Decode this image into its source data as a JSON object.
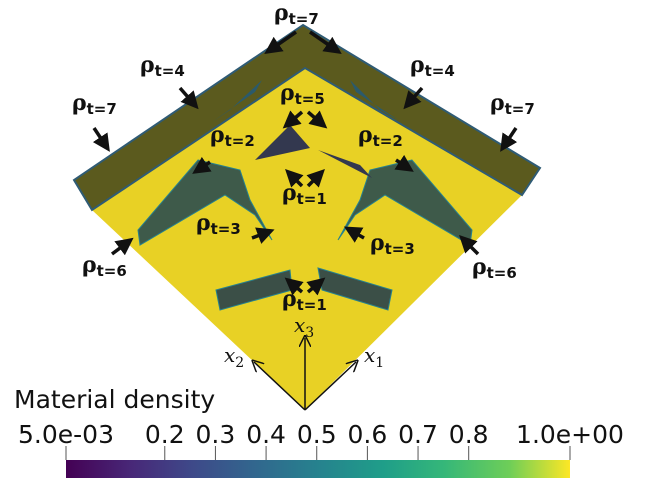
{
  "annotations": [
    {
      "symbol": "ρ",
      "subscript": "t=7"
    },
    {
      "symbol": "ρ",
      "subscript": "t=4"
    },
    {
      "symbol": "ρ",
      "subscript": "t=4"
    },
    {
      "symbol": "ρ",
      "subscript": "t=7"
    },
    {
      "symbol": "ρ",
      "subscript": "t=7"
    },
    {
      "symbol": "ρ",
      "subscript": "t=5"
    },
    {
      "symbol": "ρ",
      "subscript": "t=2"
    },
    {
      "symbol": "ρ",
      "subscript": "t=2"
    },
    {
      "symbol": "ρ",
      "subscript": "t=1"
    },
    {
      "symbol": "ρ",
      "subscript": "t=3"
    },
    {
      "symbol": "ρ",
      "subscript": "t=3"
    },
    {
      "symbol": "ρ",
      "subscript": "t=6"
    },
    {
      "symbol": "ρ",
      "subscript": "t=6"
    },
    {
      "symbol": "ρ",
      "subscript": "t=1"
    }
  ],
  "axes": [
    {
      "symbol": "x",
      "subscript": "3"
    },
    {
      "symbol": "x",
      "subscript": "2"
    },
    {
      "symbol": "x",
      "subscript": "1"
    }
  ],
  "colorbar": {
    "title": "Material density",
    "range": [
      0.005,
      1
    ],
    "ticks": [
      {
        "value": 0.005,
        "label": "5.0e-03"
      },
      0.2,
      0.3,
      0.4,
      0.5,
      0.6,
      0.7,
      0.8,
      {
        "value": 1,
        "label": "1.0e+00"
      }
    ]
  }
}
